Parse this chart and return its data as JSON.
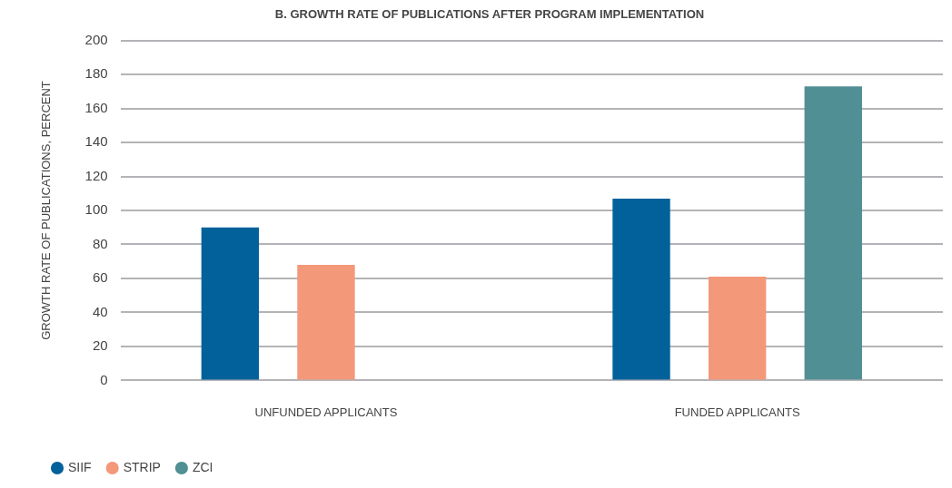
{
  "chart_data": {
    "type": "bar",
    "title": "B. GROWTH RATE OF PUBLICATIONS AFTER PROGRAM IMPLEMENTATION",
    "ylabel": "GROWTH RATE OF PUBLICATIONS, PERCENT",
    "categories": [
      "UNFUNDED APPLICANTS",
      "FUNDED APPLICANTS"
    ],
    "series": [
      {
        "name": "SIIF",
        "color": "#02619a",
        "values": [
          90,
          107
        ]
      },
      {
        "name": "STRIP",
        "color": "#f4987a",
        "values": [
          68,
          61
        ]
      },
      {
        "name": "ZCI",
        "color": "#508f94",
        "values": [
          null,
          173
        ]
      }
    ],
    "ylim": [
      0,
      200
    ],
    "yticks": [
      0,
      20,
      40,
      60,
      80,
      100,
      120,
      140,
      160,
      180,
      200
    ],
    "grid": "y",
    "legend": "bottom left"
  }
}
